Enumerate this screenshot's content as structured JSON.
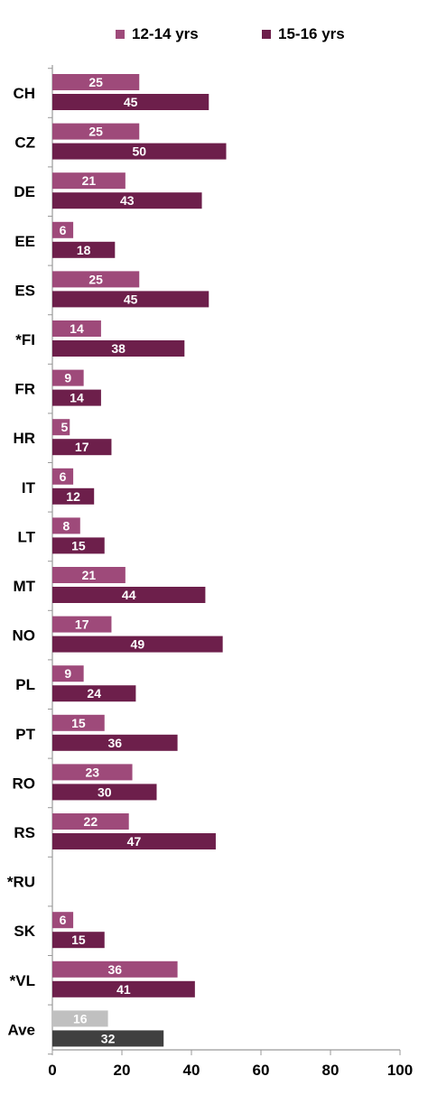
{
  "chart_data": {
    "type": "bar",
    "orientation": "horizontal",
    "categories": [
      "CH",
      "CZ",
      "DE",
      "EE",
      "ES",
      "*FI",
      "FR",
      "HR",
      "IT",
      "LT",
      "MT",
      "NO",
      "PL",
      "PT",
      "RO",
      "RS",
      "*RU",
      "SK",
      "*VL",
      "Ave"
    ],
    "series": [
      {
        "name": "12-14 yrs",
        "values": [
          25,
          25,
          21,
          6,
          25,
          14,
          9,
          5,
          6,
          8,
          21,
          17,
          9,
          15,
          23,
          22,
          null,
          6,
          36,
          16
        ]
      },
      {
        "name": "15-16 yrs",
        "values": [
          45,
          50,
          43,
          18,
          45,
          38,
          14,
          17,
          12,
          15,
          44,
          49,
          24,
          36,
          30,
          47,
          null,
          15,
          41,
          32
        ]
      }
    ],
    "xlim": [
      0,
      100
    ],
    "x_ticks": [
      0,
      20,
      40,
      60,
      80,
      100
    ],
    "grid": false,
    "legend_position": "top",
    "title": "",
    "xlabel": "",
    "ylabel": ""
  },
  "colors": {
    "series_1": "#9e4a7a",
    "series_2": "#6d1f4b",
    "average_1": "#c0c0c0",
    "average_2": "#404040",
    "axis": "#999999",
    "value_label": "#ffffff",
    "text": "#000000"
  }
}
